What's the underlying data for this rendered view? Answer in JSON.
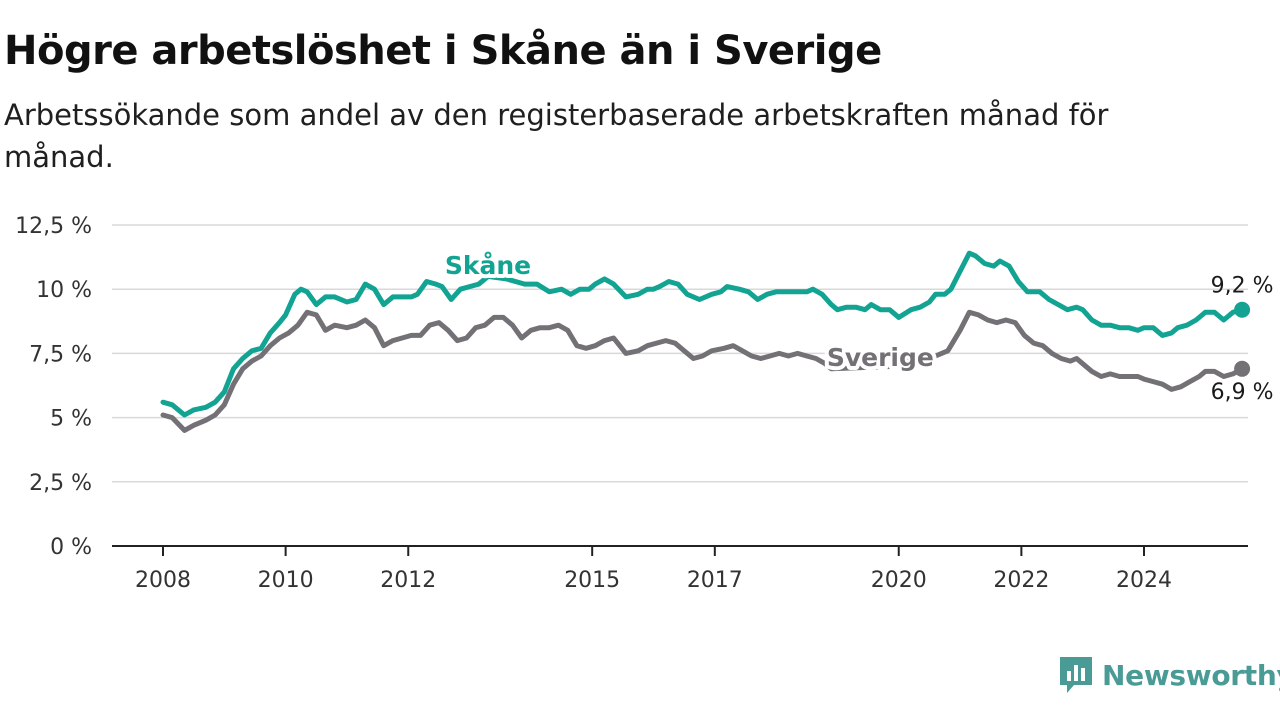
{
  "header": {
    "title": "Högre arbetslöshet i Skåne än i Sverige",
    "subtitle": "Arbetssökande som andel av den registerbaserade arbetskraften månad för månad."
  },
  "brand": {
    "name": "Newsworthy",
    "color": "#4a9b96",
    "icon": "newsworthy-chat-icon"
  },
  "chart_data": {
    "type": "line",
    "ylim": [
      0,
      12.5
    ],
    "xlim": [
      2008,
      2025.6
    ],
    "yticks": [
      {
        "value": 0,
        "label": "0 %"
      },
      {
        "value": 2.5,
        "label": "2,5 %"
      },
      {
        "value": 5,
        "label": "5 %"
      },
      {
        "value": 7.5,
        "label": "7,5 %"
      },
      {
        "value": 10,
        "label": "10 %"
      },
      {
        "value": 12.5,
        "label": "12,5 %"
      }
    ],
    "xticks": [
      {
        "value": 2008,
        "label": "2008"
      },
      {
        "value": 2010,
        "label": "2010"
      },
      {
        "value": 2012,
        "label": "2012"
      },
      {
        "value": 2015,
        "label": "2015"
      },
      {
        "value": 2017,
        "label": "2017"
      },
      {
        "value": 2020,
        "label": "2020"
      },
      {
        "value": 2022,
        "label": "2022"
      },
      {
        "value": 2024,
        "label": "2024"
      }
    ],
    "grid": true,
    "series": [
      {
        "name": "Skåne",
        "color": "#12a393",
        "label_at": [
          2013.3,
          10.6
        ],
        "end_label": "9,2 %",
        "points": [
          [
            2008.0,
            5.6
          ],
          [
            2008.15,
            5.5
          ],
          [
            2008.35,
            5.1
          ],
          [
            2008.5,
            5.3
          ],
          [
            2008.7,
            5.4
          ],
          [
            2008.85,
            5.6
          ],
          [
            2009.0,
            6.0
          ],
          [
            2009.15,
            6.9
          ],
          [
            2009.3,
            7.3
          ],
          [
            2009.45,
            7.6
          ],
          [
            2009.6,
            7.7
          ],
          [
            2009.75,
            8.3
          ],
          [
            2009.9,
            8.7
          ],
          [
            2010.0,
            9.0
          ],
          [
            2010.15,
            9.8
          ],
          [
            2010.25,
            10.0
          ],
          [
            2010.35,
            9.9
          ],
          [
            2010.5,
            9.4
          ],
          [
            2010.65,
            9.7
          ],
          [
            2010.8,
            9.7
          ],
          [
            2011.0,
            9.5
          ],
          [
            2011.15,
            9.6
          ],
          [
            2011.3,
            10.2
          ],
          [
            2011.45,
            10.0
          ],
          [
            2011.6,
            9.4
          ],
          [
            2011.75,
            9.7
          ],
          [
            2011.9,
            9.7
          ],
          [
            2012.05,
            9.7
          ],
          [
            2012.15,
            9.8
          ],
          [
            2012.3,
            10.3
          ],
          [
            2012.45,
            10.2
          ],
          [
            2012.55,
            10.1
          ],
          [
            2012.7,
            9.6
          ],
          [
            2012.85,
            10.0
          ],
          [
            2013.0,
            10.1
          ],
          [
            2013.15,
            10.2
          ],
          [
            2013.3,
            10.5
          ],
          [
            2013.6,
            10.4
          ],
          [
            2013.9,
            10.2
          ],
          [
            2014.1,
            10.2
          ],
          [
            2014.3,
            9.9
          ],
          [
            2014.5,
            10.0
          ],
          [
            2014.65,
            9.8
          ],
          [
            2014.8,
            10.0
          ],
          [
            2014.95,
            10.0
          ],
          [
            2015.05,
            10.2
          ],
          [
            2015.2,
            10.4
          ],
          [
            2015.35,
            10.2
          ],
          [
            2015.55,
            9.7
          ],
          [
            2015.75,
            9.8
          ],
          [
            2015.9,
            10.0
          ],
          [
            2016.0,
            10.0
          ],
          [
            2016.1,
            10.1
          ],
          [
            2016.25,
            10.3
          ],
          [
            2016.4,
            10.2
          ],
          [
            2016.55,
            9.8
          ],
          [
            2016.75,
            9.6
          ],
          [
            2016.95,
            9.8
          ],
          [
            2017.1,
            9.9
          ],
          [
            2017.2,
            10.1
          ],
          [
            2017.4,
            10.0
          ],
          [
            2017.55,
            9.9
          ],
          [
            2017.7,
            9.6
          ],
          [
            2017.85,
            9.8
          ],
          [
            2018.0,
            9.9
          ],
          [
            2018.3,
            9.9
          ],
          [
            2018.5,
            9.9
          ],
          [
            2018.6,
            10.0
          ],
          [
            2018.75,
            9.8
          ],
          [
            2018.9,
            9.4
          ],
          [
            2019.0,
            9.2
          ],
          [
            2019.15,
            9.3
          ],
          [
            2019.3,
            9.3
          ],
          [
            2019.45,
            9.2
          ],
          [
            2019.55,
            9.4
          ],
          [
            2019.7,
            9.2
          ],
          [
            2019.85,
            9.2
          ],
          [
            2020.0,
            8.9
          ],
          [
            2020.2,
            9.2
          ],
          [
            2020.35,
            9.3
          ],
          [
            2020.5,
            9.5
          ],
          [
            2020.6,
            9.8
          ],
          [
            2020.75,
            9.8
          ],
          [
            2020.85,
            10.0
          ],
          [
            2021.0,
            10.7
          ],
          [
            2021.15,
            11.4
          ],
          [
            2021.25,
            11.3
          ],
          [
            2021.4,
            11.0
          ],
          [
            2021.55,
            10.9
          ],
          [
            2021.65,
            11.1
          ],
          [
            2021.8,
            10.9
          ],
          [
            2021.95,
            10.3
          ],
          [
            2022.1,
            9.9
          ],
          [
            2022.3,
            9.9
          ],
          [
            2022.45,
            9.6
          ],
          [
            2022.6,
            9.4
          ],
          [
            2022.75,
            9.2
          ],
          [
            2022.9,
            9.3
          ],
          [
            2023.0,
            9.2
          ],
          [
            2023.15,
            8.8
          ],
          [
            2023.3,
            8.6
          ],
          [
            2023.45,
            8.6
          ],
          [
            2023.6,
            8.5
          ],
          [
            2023.75,
            8.5
          ],
          [
            2023.9,
            8.4
          ],
          [
            2024.0,
            8.5
          ],
          [
            2024.15,
            8.5
          ],
          [
            2024.3,
            8.2
          ],
          [
            2024.45,
            8.3
          ],
          [
            2024.55,
            8.5
          ],
          [
            2024.7,
            8.6
          ],
          [
            2024.85,
            8.8
          ],
          [
            2025.0,
            9.1
          ],
          [
            2025.15,
            9.1
          ],
          [
            2025.3,
            8.8
          ],
          [
            2025.45,
            9.1
          ],
          [
            2025.6,
            9.2
          ]
        ]
      },
      {
        "name": "Sverige",
        "color": "#737076",
        "label_at": [
          2019.7,
          7.0
        ],
        "end_label": "6,9 %",
        "points": [
          [
            2008.0,
            5.1
          ],
          [
            2008.15,
            5.0
          ],
          [
            2008.35,
            4.5
          ],
          [
            2008.5,
            4.7
          ],
          [
            2008.7,
            4.9
          ],
          [
            2008.85,
            5.1
          ],
          [
            2009.0,
            5.5
          ],
          [
            2009.15,
            6.3
          ],
          [
            2009.3,
            6.9
          ],
          [
            2009.45,
            7.2
          ],
          [
            2009.6,
            7.4
          ],
          [
            2009.75,
            7.8
          ],
          [
            2009.9,
            8.1
          ],
          [
            2010.05,
            8.3
          ],
          [
            2010.2,
            8.6
          ],
          [
            2010.35,
            9.1
          ],
          [
            2010.5,
            9.0
          ],
          [
            2010.65,
            8.4
          ],
          [
            2010.8,
            8.6
          ],
          [
            2011.0,
            8.5
          ],
          [
            2011.15,
            8.6
          ],
          [
            2011.3,
            8.8
          ],
          [
            2011.45,
            8.5
          ],
          [
            2011.6,
            7.8
          ],
          [
            2011.75,
            8.0
          ],
          [
            2011.9,
            8.1
          ],
          [
            2012.05,
            8.2
          ],
          [
            2012.2,
            8.2
          ],
          [
            2012.35,
            8.6
          ],
          [
            2012.5,
            8.7
          ],
          [
            2012.65,
            8.4
          ],
          [
            2012.8,
            8.0
          ],
          [
            2012.95,
            8.1
          ],
          [
            2013.1,
            8.5
          ],
          [
            2013.25,
            8.6
          ],
          [
            2013.4,
            8.9
          ],
          [
            2013.55,
            8.9
          ],
          [
            2013.7,
            8.6
          ],
          [
            2013.85,
            8.1
          ],
          [
            2014.0,
            8.4
          ],
          [
            2014.15,
            8.5
          ],
          [
            2014.3,
            8.5
          ],
          [
            2014.45,
            8.6
          ],
          [
            2014.6,
            8.4
          ],
          [
            2014.75,
            7.8
          ],
          [
            2014.9,
            7.7
          ],
          [
            2015.05,
            7.8
          ],
          [
            2015.2,
            8.0
          ],
          [
            2015.35,
            8.1
          ],
          [
            2015.55,
            7.5
          ],
          [
            2015.75,
            7.6
          ],
          [
            2015.9,
            7.8
          ],
          [
            2016.05,
            7.9
          ],
          [
            2016.2,
            8.0
          ],
          [
            2016.35,
            7.9
          ],
          [
            2016.5,
            7.6
          ],
          [
            2016.65,
            7.3
          ],
          [
            2016.8,
            7.4
          ],
          [
            2016.95,
            7.6
          ],
          [
            2017.15,
            7.7
          ],
          [
            2017.3,
            7.8
          ],
          [
            2017.45,
            7.6
          ],
          [
            2017.6,
            7.4
          ],
          [
            2017.75,
            7.3
          ],
          [
            2017.9,
            7.4
          ],
          [
            2018.05,
            7.5
          ],
          [
            2018.2,
            7.4
          ],
          [
            2018.35,
            7.5
          ],
          [
            2018.5,
            7.4
          ],
          [
            2018.65,
            7.3
          ],
          [
            2018.8,
            7.1
          ],
          [
            2018.9,
            6.9
          ],
          [
            2020.0,
            7.0
          ],
          [
            2020.2,
            7.3
          ],
          [
            2020.4,
            7.4
          ],
          [
            2020.6,
            7.4
          ],
          [
            2020.8,
            7.6
          ],
          [
            2021.0,
            8.4
          ],
          [
            2021.15,
            9.1
          ],
          [
            2021.3,
            9.0
          ],
          [
            2021.45,
            8.8
          ],
          [
            2021.6,
            8.7
          ],
          [
            2021.75,
            8.8
          ],
          [
            2021.9,
            8.7
          ],
          [
            2022.05,
            8.2
          ],
          [
            2022.2,
            7.9
          ],
          [
            2022.35,
            7.8
          ],
          [
            2022.5,
            7.5
          ],
          [
            2022.65,
            7.3
          ],
          [
            2022.8,
            7.2
          ],
          [
            2022.9,
            7.3
          ],
          [
            2023.0,
            7.1
          ],
          [
            2023.15,
            6.8
          ],
          [
            2023.3,
            6.6
          ],
          [
            2023.45,
            6.7
          ],
          [
            2023.6,
            6.6
          ],
          [
            2023.75,
            6.6
          ],
          [
            2023.9,
            6.6
          ],
          [
            2024.0,
            6.5
          ],
          [
            2024.15,
            6.4
          ],
          [
            2024.3,
            6.3
          ],
          [
            2024.45,
            6.1
          ],
          [
            2024.6,
            6.2
          ],
          [
            2024.75,
            6.4
          ],
          [
            2024.9,
            6.6
          ],
          [
            2025.0,
            6.8
          ],
          [
            2025.15,
            6.8
          ],
          [
            2025.3,
            6.6
          ],
          [
            2025.45,
            6.7
          ],
          [
            2025.6,
            6.9
          ]
        ]
      }
    ]
  }
}
